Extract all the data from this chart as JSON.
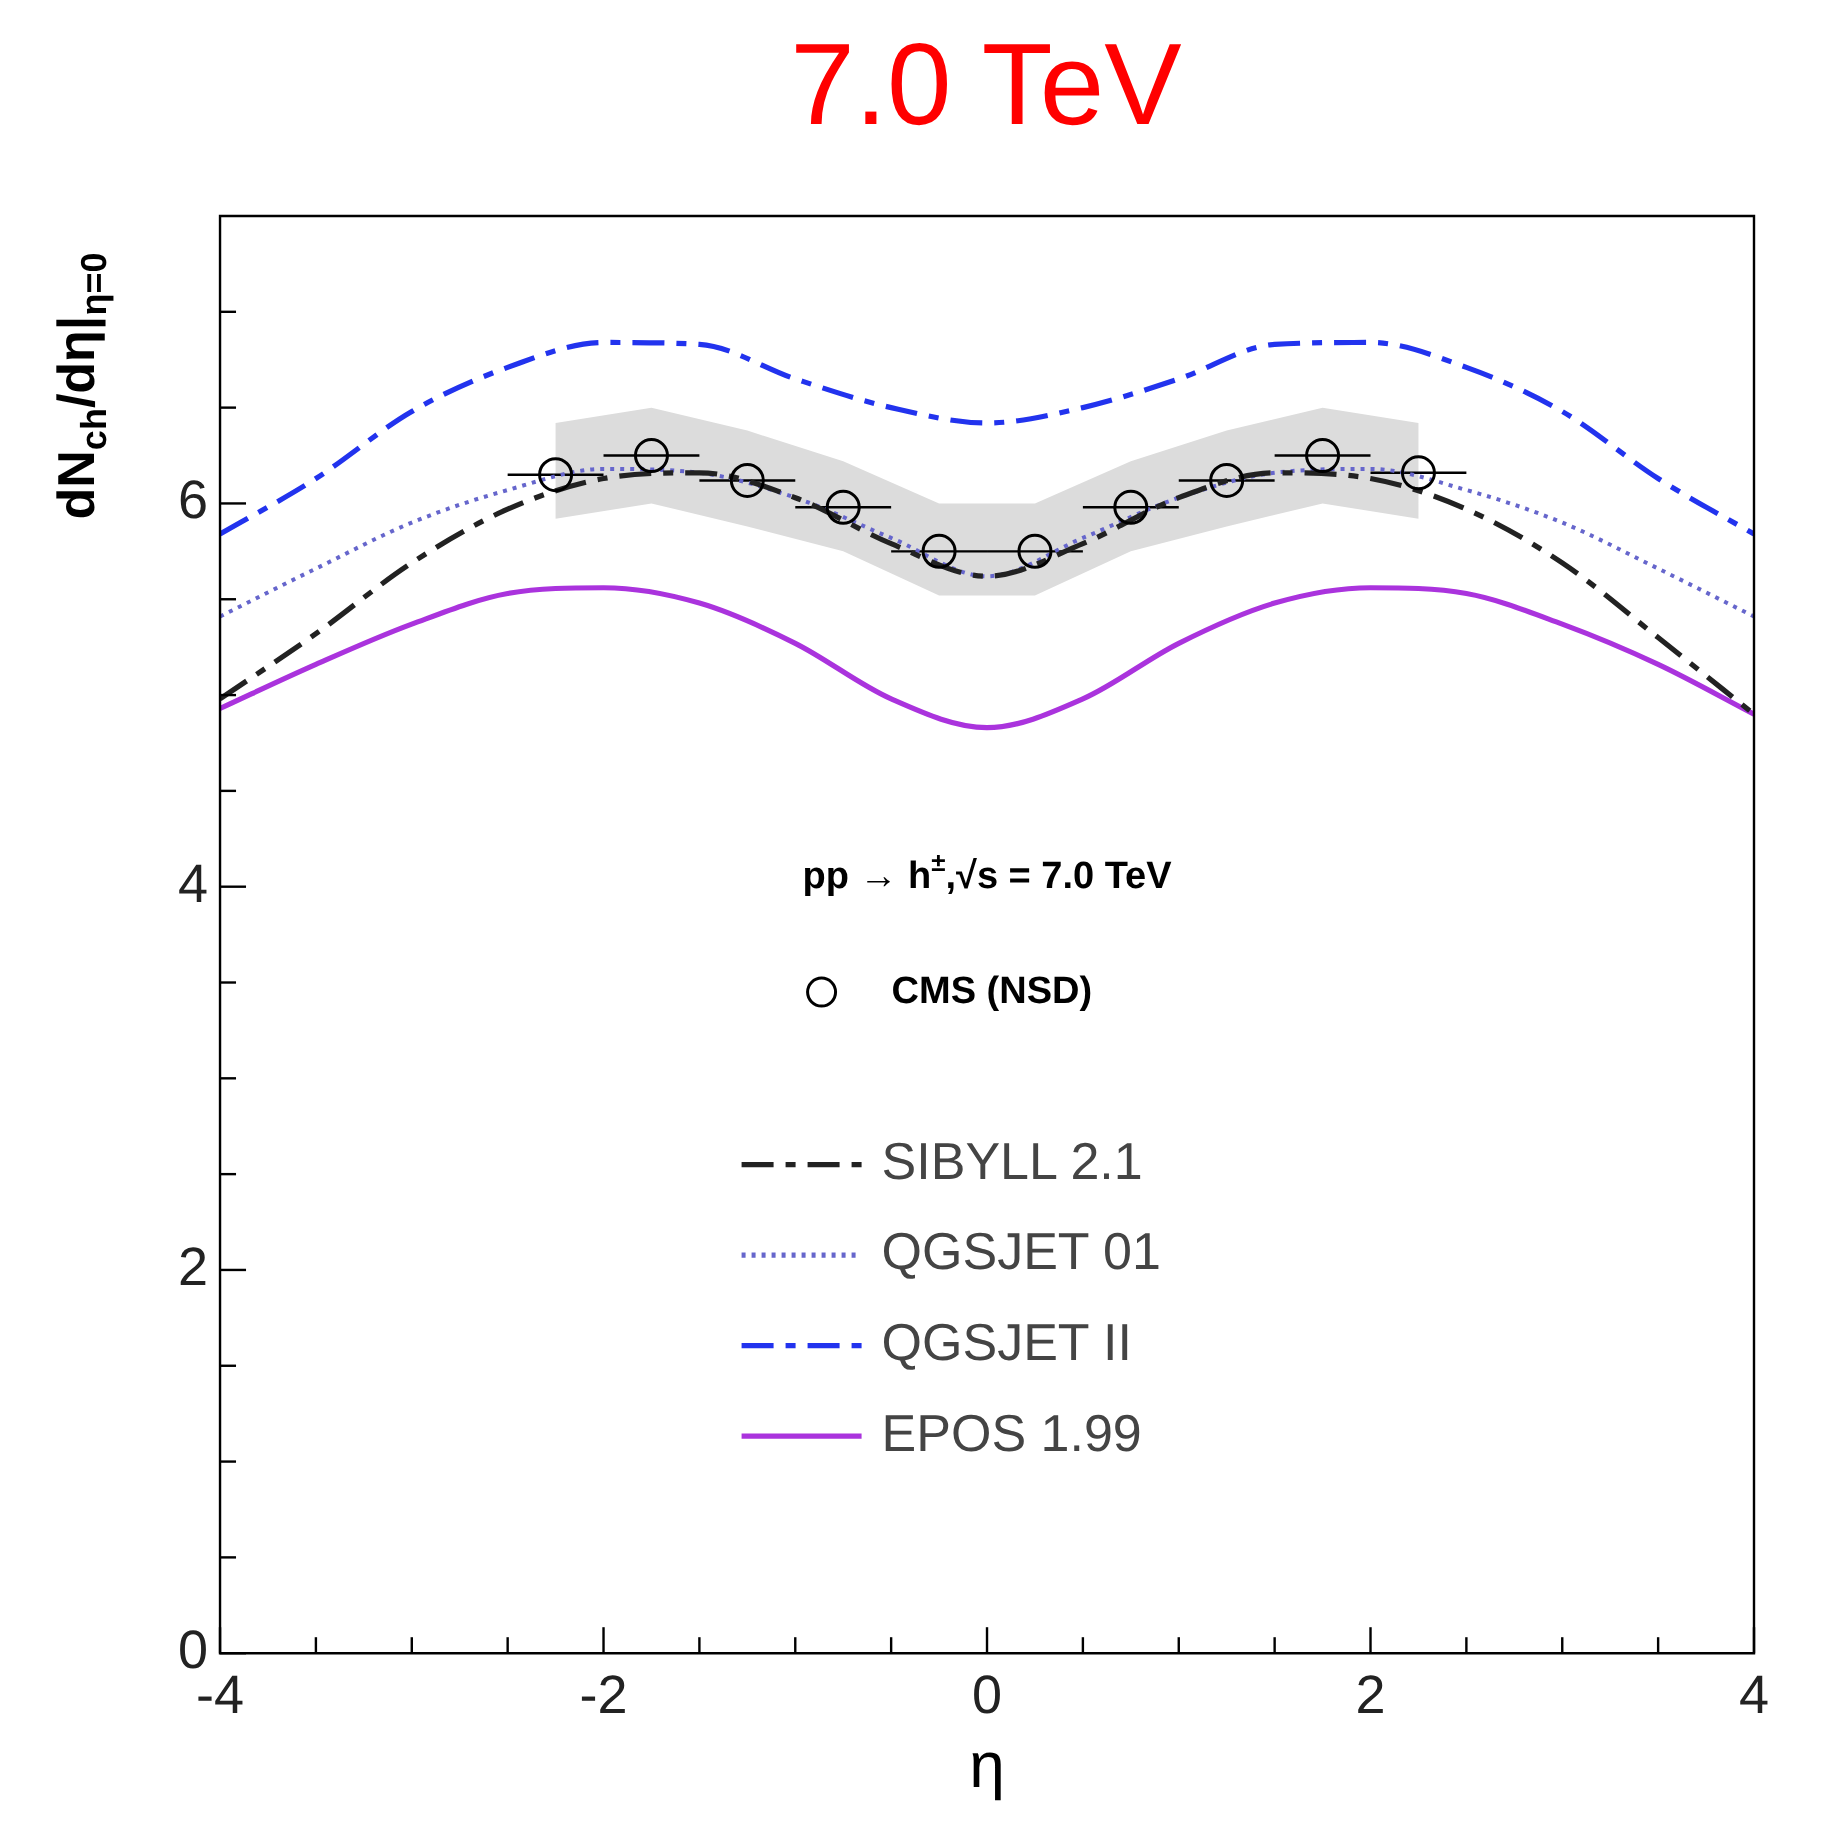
{
  "chart_data": {
    "type": "line",
    "title": "7.0 TeV",
    "xlabel": "η",
    "ylabel": "dN$_{ch}$/dη|$_{η=0}$",
    "annotations": [
      "pp → h$^{±}$,√s = 7.0 TeV"
    ],
    "xlim": [
      -4,
      4
    ],
    "ylim": [
      0,
      7.5
    ],
    "xticks": [
      -4,
      {
        "value": -3.5,
        "label": null
      },
      {
        "value": -3,
        "label": null
      },
      {
        "value": -2.5,
        "label": null
      },
      -2,
      {
        "value": -1.5,
        "label": null
      },
      {
        "value": -1,
        "label": null
      },
      {
        "value": -0.5,
        "label": null
      },
      0,
      {
        "value": 0.5,
        "label": null
      },
      {
        "value": 1,
        "label": null
      },
      {
        "value": 1.5,
        "label": null
      },
      2,
      {
        "value": 2.5,
        "label": null
      },
      {
        "value": 3,
        "label": null
      },
      {
        "value": 3.5,
        "label": null
      },
      4
    ],
    "yticks": [
      0,
      {
        "value": 0.5,
        "label": null
      },
      {
        "value": 1,
        "label": null
      },
      {
        "value": 1.5,
        "label": null
      },
      2,
      {
        "value": 2.5,
        "label": null
      },
      {
        "value": 3,
        "label": null
      },
      {
        "value": 3.5,
        "label": null
      },
      4,
      {
        "value": 4.5,
        "label": null
      },
      {
        "value": 5,
        "label": null
      },
      {
        "value": 5.5,
        "label": null
      },
      6,
      {
        "value": 6.5,
        "label": null
      },
      {
        "value": 7,
        "label": null
      }
    ],
    "grid": false,
    "legend": "bottom",
    "series": [
      {
        "name": "CMS (NSD)",
        "type": "scatter",
        "marker": "circle",
        "color": "#000000",
        "x": [
          -2.25,
          -1.75,
          -1.25,
          -0.75,
          -0.25,
          0.25,
          0.75,
          1.25,
          1.75,
          2.25
        ],
        "values": [
          6.15,
          6.25,
          6.12,
          5.98,
          5.75,
          5.75,
          5.98,
          6.12,
          6.25,
          6.16
        ],
        "xerrors": [
          0.25,
          0.25,
          0.25,
          0.25,
          0.25,
          0.25,
          0.25,
          0.25,
          0.25,
          0.25
        ],
        "lower": [
          5.92,
          6.0,
          5.88,
          5.75,
          5.52,
          5.52,
          5.75,
          5.88,
          6.0,
          5.92
        ],
        "upper": [
          6.42,
          6.5,
          6.38,
          6.22,
          6.0,
          6.0,
          6.22,
          6.38,
          6.5,
          6.42
        ]
      },
      {
        "name": "SIBYLL 2.1",
        "type": "line",
        "marker": "none",
        "line_style": "dashed",
        "color": "#222222",
        "x": [
          -4,
          -3.5,
          -3,
          -2.5,
          -2,
          -1.5,
          -1,
          -0.5,
          0,
          0.5,
          1,
          1.5,
          2,
          2.5,
          3,
          3.5,
          4
        ],
        "values": [
          4.98,
          5.32,
          5.69,
          5.97,
          6.13,
          6.16,
          6.03,
          5.79,
          5.62,
          5.79,
          6.03,
          6.16,
          6.13,
          5.97,
          5.69,
          5.3,
          4.9
        ]
      },
      {
        "name": "QGSJET 01",
        "type": "line",
        "marker": "none",
        "line_style": "dotted",
        "color": "#6666cc",
        "x": [
          -4,
          -3.5,
          -3,
          -2.5,
          -2,
          -1.5,
          -1,
          -0.5,
          0,
          0.5,
          1,
          1.5,
          2,
          2.5,
          3,
          3.5,
          4
        ],
        "values": [
          5.41,
          5.66,
          5.9,
          6.07,
          6.18,
          6.16,
          6.03,
          5.82,
          5.62,
          5.82,
          6.03,
          6.16,
          6.18,
          6.07,
          5.9,
          5.66,
          5.41
        ]
      },
      {
        "name": "QGSJET II",
        "type": "line",
        "marker": "none",
        "line_style": "dashed",
        "color": "#2233ee",
        "x": [
          -4,
          -3.5,
          -3,
          -2.5,
          -2,
          -1.5,
          -1,
          -0.5,
          0,
          0.5,
          1,
          1.5,
          2,
          2.5,
          3,
          3.5,
          4
        ],
        "values": [
          5.84,
          6.13,
          6.48,
          6.71,
          6.84,
          6.83,
          6.65,
          6.5,
          6.42,
          6.5,
          6.65,
          6.83,
          6.84,
          6.71,
          6.48,
          6.13,
          5.84
        ]
      },
      {
        "name": "EPOS 1.99",
        "type": "line",
        "marker": "none",
        "line_style": "solid",
        "color": "#aa33dd",
        "x": [
          -4,
          -3.5,
          -3,
          -2.5,
          -2,
          -1.5,
          -1,
          -0.5,
          0,
          0.5,
          1,
          1.5,
          2,
          2.5,
          3,
          3.5,
          4
        ],
        "values": [
          4.93,
          5.16,
          5.37,
          5.53,
          5.56,
          5.48,
          5.27,
          4.98,
          4.83,
          4.98,
          5.27,
          5.48,
          5.56,
          5.53,
          5.37,
          5.16,
          4.9
        ]
      }
    ]
  }
}
